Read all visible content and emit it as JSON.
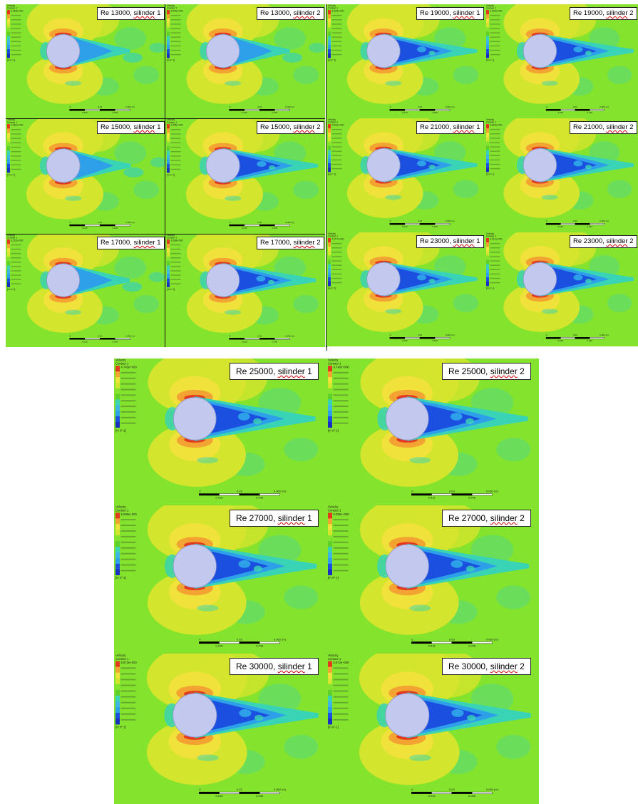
{
  "figure": {
    "legend_title": "Velocity",
    "legend_subtitle": "Contour 1",
    "legend_unit": "[m s^-1]",
    "scale_top": [
      "0",
      "0.03",
      "0.060 (m)"
    ],
    "scale_bottom": [
      "0.015",
      "0.045"
    ]
  },
  "colors": {
    "ambient": "#84e32c",
    "ambient_dark": "#5fd02a",
    "high": "#d4e52d",
    "yellow": "#f0e23a",
    "orange": "#f3a331",
    "red": "#e33a1f",
    "wake_light": "#39d3b5",
    "wake": "#2ea0e9",
    "wake_deep": "#1b4fe0",
    "cylinder": "#c2c8ee"
  },
  "panels": [
    {
      "re": "Re 13000,",
      "sil": "silinder",
      "num": "1",
      "wake": 1,
      "legend_max": "2.383e+000"
    },
    {
      "re": "Re 13000,",
      "sil": "silinder",
      "num": "2",
      "wake": 1,
      "legend_max": "2.525e+000"
    },
    {
      "re": "Re 15000,",
      "sil": "silinder",
      "num": "1",
      "wake": 1,
      "legend_max": "2.961e+000"
    },
    {
      "re": "Re 15000,",
      "sil": "silinder",
      "num": "2",
      "wake": 2,
      "legend_max": "2.955e+000"
    },
    {
      "re": "Re 17000,",
      "sil": "silinder",
      "num": "1",
      "wake": 1,
      "legend_max": "3.251e+000"
    },
    {
      "re": "Re 17000,",
      "sil": "silinder",
      "num": "2",
      "wake": 2,
      "legend_max": "3.318e+000"
    },
    {
      "re": "Re 19000,",
      "sil": "silinder",
      "num": "1",
      "wake": 2,
      "legend_max": "3.600e+000"
    },
    {
      "re": "Re 19000,",
      "sil": "silinder",
      "num": "2",
      "wake": 2,
      "legend_max": "3.524e+000"
    },
    {
      "re": "Re 21000,",
      "sil": "silinder",
      "num": "1",
      "wake": 2,
      "legend_max": "3.844e+000"
    },
    {
      "re": "Re 21000,",
      "sil": "silinder",
      "num": "2",
      "wake": 2,
      "legend_max": "3.804e+000"
    },
    {
      "re": "Re 23000,",
      "sil": "silinder",
      "num": "1",
      "wake": 2,
      "legend_max": "4.277e+000"
    },
    {
      "re": "Re 23000,",
      "sil": "silinder",
      "num": "2",
      "wake": 2,
      "legend_max": "4.217e+000"
    },
    {
      "re": "Re 25000,",
      "sil": "silinder",
      "num": "1",
      "wake": 2,
      "legend_max": "4.745e+000"
    },
    {
      "re": "Re 25000,",
      "sil": "silinder",
      "num": "2",
      "wake": 2,
      "legend_max": "4.740e+000"
    },
    {
      "re": "Re 27000,",
      "sil": "silinder",
      "num": "1",
      "wake": 2,
      "legend_max": "5.098e+000"
    },
    {
      "re": "Re 27000,",
      "sil": "silinder",
      "num": "2",
      "wake": 2,
      "legend_max": "5.086e+000"
    },
    {
      "re": "Re 30000,",
      "sil": "silinder",
      "num": "1",
      "wake": 2,
      "legend_max": "5.673e+000"
    },
    {
      "re": "Re 30000,",
      "sil": "silinder",
      "num": "2",
      "wake": 2,
      "legend_max": "5.673e+000"
    }
  ]
}
